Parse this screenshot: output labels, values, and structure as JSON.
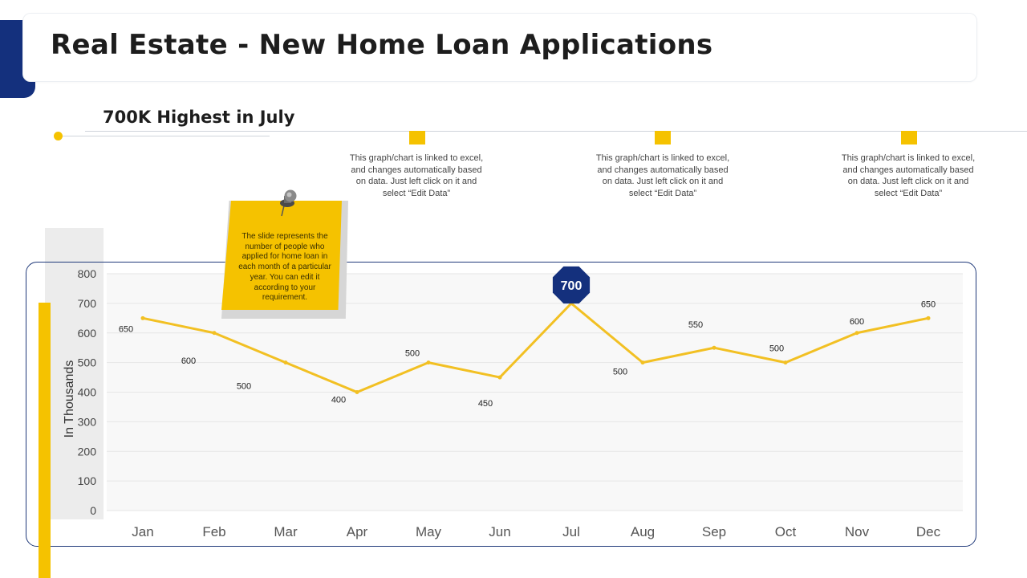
{
  "title": "Real Estate - New Home Loan Applications",
  "subtitle": "700K Highest in July",
  "notes": [
    "This graph/chart is linked to excel,\nand changes automatically based\non data. Just left click on it and\nselect “Edit Data”",
    "This graph/chart is linked to excel,\nand changes automatically based\non data. Just left click on it and\nselect “Edit Data”",
    "This graph/chart is linked to excel,\nand changes automatically based\non data. Just left click on it and\nselect “Edit Data”"
  ],
  "sticky_note": "The slide represents the number of people who applied for home loan in each month of a particular year. You can edit it according to your requirement.",
  "colors": {
    "accent": "#f5c200",
    "navy": "#14307d",
    "line": "#f2c023"
  },
  "chart_data": {
    "type": "line",
    "title": "",
    "xlabel": "",
    "ylabel": "In Thousands",
    "categories": [
      "Jan",
      "Feb",
      "Mar",
      "Apr",
      "May",
      "Jun",
      "Jul",
      "Aug",
      "Sep",
      "Oct",
      "Nov",
      "Dec"
    ],
    "series": [
      {
        "values": [
          650,
          600,
          500,
          400,
          500,
          450,
          700,
          500,
          550,
          500,
          600,
          650
        ]
      }
    ],
    "data_labels": [
      "650",
      "600",
      "500",
      "400",
      "500",
      "450",
      "700",
      "500",
      "550",
      "500",
      "600",
      "650"
    ],
    "yticks": [
      0,
      100,
      200,
      300,
      400,
      500,
      600,
      700,
      800
    ],
    "ylim": [
      0,
      800
    ],
    "grid": true,
    "highlight": {
      "category": "Jul",
      "label": "700"
    }
  }
}
